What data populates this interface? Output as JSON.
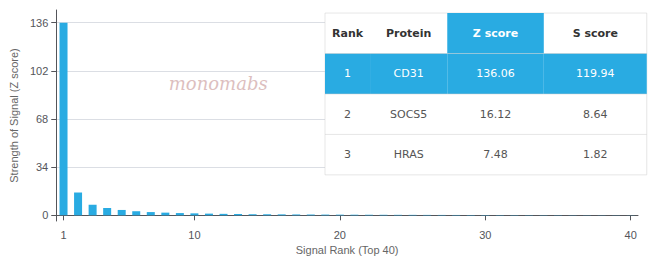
{
  "chart_data": {
    "type": "bar",
    "xlabel": "Signal Rank (Top 40)",
    "ylabel": "Strength of Signal (Z score)",
    "x": [
      1,
      2,
      3,
      4,
      5,
      6,
      7,
      8,
      9,
      10,
      11,
      12,
      13,
      14,
      15,
      16,
      17,
      18,
      19,
      20,
      21,
      22,
      23,
      24,
      25,
      26,
      27,
      28,
      29,
      30,
      31,
      32,
      33,
      34,
      35,
      36,
      37,
      38,
      39,
      40
    ],
    "values": [
      136.06,
      16.12,
      7.48,
      5.2,
      3.8,
      2.9,
      2.3,
      1.9,
      1.6,
      1.4,
      1.2,
      1.05,
      0.95,
      0.85,
      0.75,
      0.68,
      0.62,
      0.57,
      0.52,
      0.48,
      0.44,
      0.41,
      0.38,
      0.35,
      0.33,
      0.3,
      0.28,
      0.26,
      0.24,
      0.22,
      0.2,
      0.19,
      0.17,
      0.16,
      0.15,
      0.13,
      0.12,
      0.11,
      0.1,
      0.09
    ],
    "color": "#29ABE2",
    "xlim": [
      0.5,
      40.5
    ],
    "xticks": [
      1,
      10,
      20,
      30,
      40
    ],
    "ylim": [
      -4,
      145
    ],
    "yticks": [
      0,
      34,
      68,
      102,
      136
    ],
    "grid": true,
    "annotations": [
      "monomabs"
    ],
    "table": {
      "columns": [
        "Rank",
        "Protein",
        "Z score",
        "S score"
      ],
      "rows": [
        [
          "1",
          "CD31",
          "136.06",
          "119.94"
        ],
        [
          "2",
          "SOCS5",
          "16.12",
          "8.64"
        ],
        [
          "3",
          "HRAS",
          "7.48",
          "1.82"
        ]
      ]
    }
  }
}
